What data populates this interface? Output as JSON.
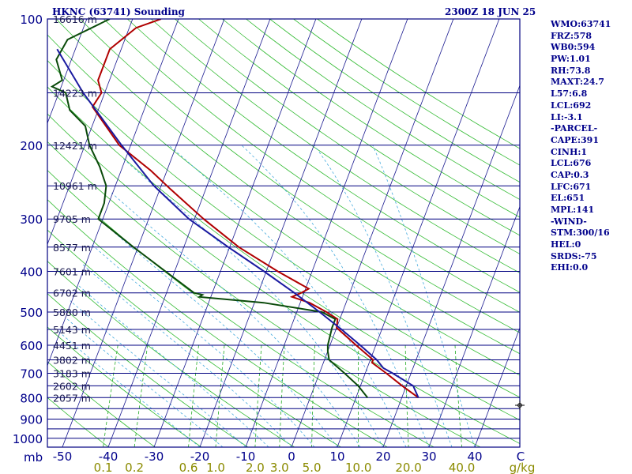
{
  "header": {
    "station": "HKNC (63741) Sounding",
    "time": "2300Z 18 JUN 25"
  },
  "params": [
    "WMO:63741",
    "FRZ:578",
    "WB0:594",
    "PW:1.01",
    "RH:73.8",
    "MAXT:24.7",
    "L57:6.8",
    "LCL:692",
    "LI:-3.1",
    "-PARCEL-",
    "CAPE:391",
    "CINH:1",
    "LCL:676",
    "CAP:0.3",
    "LFC:671",
    "EL:651",
    "MPL:141",
    "-WIND-",
    "STM:300/16",
    "HEL:0",
    "SRDS:-75",
    "EHI:0.0"
  ],
  "chart_data": {
    "type": "line",
    "title": "HKNC (63741) Sounding",
    "subtitle": "2300Z 18 JUN 25",
    "xlabel": "",
    "ylabel": "mb",
    "pressure_ticks": [
      "100",
      "200",
      "300",
      "400",
      "500",
      "600",
      "700",
      "800",
      "900",
      "1000"
    ],
    "pressure_values": [
      100,
      200,
      300,
      400,
      500,
      600,
      700,
      800,
      900,
      1000
    ],
    "temp_ticks": [
      "-50",
      "-40",
      "-30",
      "-20",
      "-10",
      "0",
      "10",
      "20",
      "30",
      "40",
      "C"
    ],
    "temp_values": [
      -50,
      -40,
      -30,
      -20,
      -10,
      0,
      10,
      20,
      30,
      40
    ],
    "mixing_ratio_ticks": [
      "0.1",
      "0.2",
      "0.6",
      "1.0",
      "2.0",
      "3.0",
      "5.0",
      "10.0",
      "20.0",
      "40.0",
      "g/kg"
    ],
    "mixing_ratio_values": [
      0.1,
      0.2,
      0.6,
      1.0,
      2.0,
      3.0,
      5.0,
      10.0,
      20.0,
      40.0
    ],
    "height_labels": [
      {
        "p": 100,
        "text": "16616 m"
      },
      {
        "p": 150,
        "text": "14223 m"
      },
      {
        "p": 200,
        "text": "12421 m"
      },
      {
        "p": 250,
        "text": "10961 m"
      },
      {
        "p": 300,
        "text": "9705 m"
      },
      {
        "p": 350,
        "text": "8577 m"
      },
      {
        "p": 400,
        "text": "7601 m"
      },
      {
        "p": 450,
        "text": "6702 m"
      },
      {
        "p": 500,
        "text": "5880 m"
      },
      {
        "p": 550,
        "text": "5143 m"
      },
      {
        "p": 600,
        "text": "4451 m"
      },
      {
        "p": 650,
        "text": "3802 m"
      },
      {
        "p": 700,
        "text": "3183 m"
      },
      {
        "p": 750,
        "text": "2602 m"
      },
      {
        "p": 800,
        "text": "2057 m"
      }
    ],
    "series": [
      {
        "color": "#b00000",
        "points": [
          [
            100,
            -63.8
          ],
          [
            105,
            -68.5
          ],
          [
            118,
            -72.5
          ],
          [
            140,
            -72.5
          ],
          [
            150,
            -70.7
          ],
          [
            162,
            -71.5
          ],
          [
            200,
            -62.5
          ],
          [
            230,
            -53.5
          ],
          [
            255,
            -47.6
          ],
          [
            300,
            -38.0
          ],
          [
            350,
            -28.0
          ],
          [
            400,
            -17.5
          ],
          [
            440,
            -9.3
          ],
          [
            450,
            -10.6
          ],
          [
            460,
            -12.3
          ],
          [
            475,
            -8.0
          ],
          [
            500,
            -3.5
          ],
          [
            520,
            -0.5
          ],
          [
            545,
            0.0
          ],
          [
            600,
            5.7
          ],
          [
            650,
            10.6
          ],
          [
            660,
            10.6
          ],
          [
            700,
            14.6
          ],
          [
            750,
            19.1
          ],
          [
            800,
            23.6
          ]
        ]
      },
      {
        "color": "#0a4a0a",
        "points": [
          [
            100,
            -75.0
          ],
          [
            112,
            -82.5
          ],
          [
            125,
            -83.3
          ],
          [
            140,
            -80.3
          ],
          [
            145,
            -82.0
          ],
          [
            150,
            -78.5
          ],
          [
            165,
            -76.2
          ],
          [
            180,
            -71.5
          ],
          [
            200,
            -69.0
          ],
          [
            225,
            -65.0
          ],
          [
            250,
            -62.0
          ],
          [
            275,
            -61.0
          ],
          [
            300,
            -61.0
          ],
          [
            350,
            -51.0
          ],
          [
            400,
            -42.0
          ],
          [
            450,
            -34.0
          ],
          [
            455,
            -32.0
          ],
          [
            460,
            -32.5
          ],
          [
            475,
            -18.0
          ],
          [
            500,
            -4.5
          ],
          [
            520,
            -1.0
          ],
          [
            545,
            -1.0
          ],
          [
            600,
            -0.5
          ],
          [
            620,
            0.0
          ],
          [
            650,
            1.0
          ],
          [
            700,
            5.5
          ],
          [
            750,
            9.5
          ],
          [
            800,
            12.5
          ]
        ]
      },
      {
        "color": "#1a1aa0",
        "points": [
          [
            118,
            -84.0
          ],
          [
            150,
            -74.7
          ],
          [
            200,
            -62.0
          ],
          [
            250,
            -51.6
          ],
          [
            300,
            -41.2
          ],
          [
            350,
            -30.3
          ],
          [
            400,
            -20.5
          ],
          [
            450,
            -12.1
          ],
          [
            500,
            -5.0
          ],
          [
            550,
            1.2
          ],
          [
            600,
            6.6
          ],
          [
            650,
            11.4
          ],
          [
            680,
            13.5
          ],
          [
            700,
            16.0
          ],
          [
            750,
            21.5
          ],
          [
            800,
            23.6
          ]
        ]
      }
    ]
  }
}
